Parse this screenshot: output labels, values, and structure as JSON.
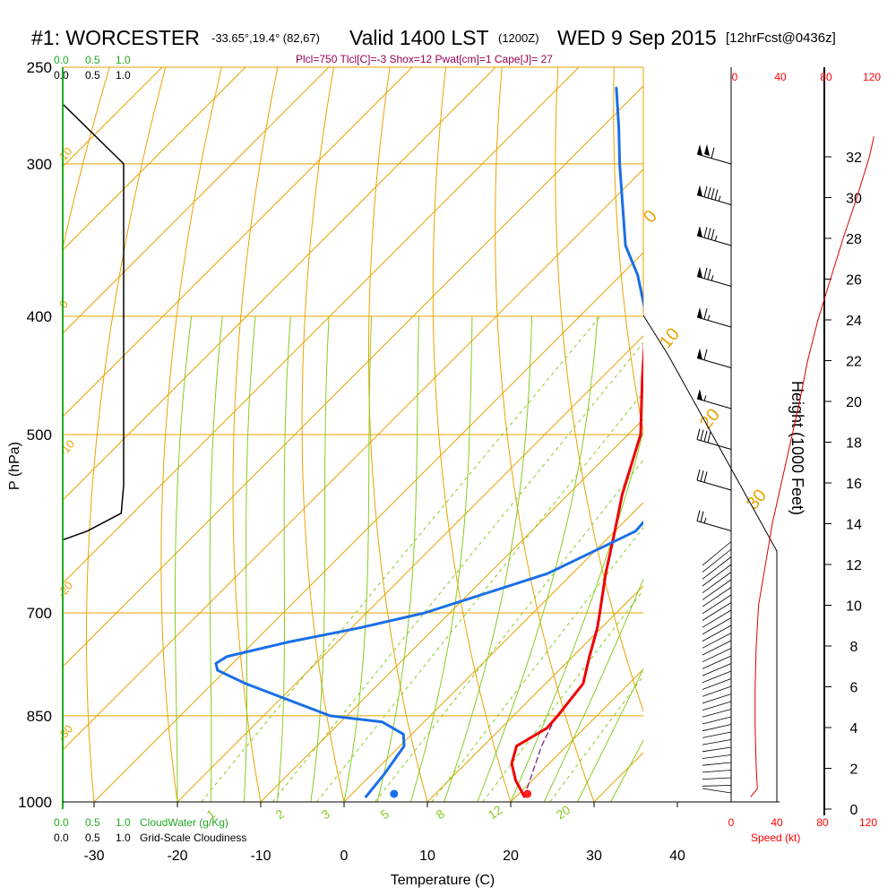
{
  "header": {
    "station": "#1: WORCESTER",
    "coords": "-33.65°,19.4° (82,67)",
    "valid": "Valid 1400 LST",
    "zulu": "(1200Z)",
    "date": "WED 9 Sep 2015",
    "forecast": "[12hrFcst@0436z]",
    "stats": "Plcl=750 Tlcl[C]=-3 Shox=12 Pwat[cm]=1 Cape[J]= 27"
  },
  "colors": {
    "isotherm": "#e9a300",
    "mixing_ratio": "#88cc22",
    "temperature": "#ee0000",
    "dewpoint": "#1a6fe6",
    "wind_speed": "#dd0000",
    "cloud": "#22aa22"
  },
  "chart_data": {
    "type": "line",
    "title": "#1: WORCESTER",
    "xlabel": "Temperature (C)",
    "ylabel": "P (hPa)",
    "y2label": "Height (1000 Feet)",
    "x_ticks": [
      -30,
      -20,
      -10,
      0,
      10,
      20,
      30,
      40
    ],
    "p_ticks": [
      250,
      300,
      400,
      500,
      700,
      850,
      1000
    ],
    "p_scale": "log",
    "height_ticks": [
      0,
      2,
      4,
      6,
      8,
      10,
      12,
      14,
      16,
      18,
      20,
      22,
      24,
      26,
      28,
      30,
      32
    ],
    "isotherm_labels": [
      "10",
      "0",
      "-10",
      "-20",
      "-30",
      "0",
      "10",
      "20",
      "30"
    ],
    "mixing_ratio_labels": [
      "1",
      "2",
      "3",
      "5",
      "8",
      "12",
      "20"
    ],
    "series": [
      {
        "name": "Temperature",
        "p": [
          990,
          960,
          930,
          900,
          870,
          850,
          800,
          760,
          720,
          700,
          650,
          600,
          560,
          500,
          450,
          400,
          350,
          300,
          270,
          260
        ],
        "t": [
          21.0,
          18.0,
          15.5,
          14.0,
          15.5,
          15.3,
          14.5,
          12.0,
          9.5,
          8.0,
          4.0,
          0.0,
          -3.5,
          -8.5,
          -15.0,
          -22.0,
          -30.0,
          -40.0,
          -45.5,
          -47.5
        ]
      },
      {
        "name": "Dewpoint",
        "p": [
          990,
          950,
          900,
          880,
          860,
          850,
          800,
          780,
          770,
          760,
          740,
          720,
          700,
          650,
          600,
          560,
          500,
          450,
          400,
          370,
          350,
          300,
          280,
          260
        ],
        "t": [
          2.0,
          1.5,
          0.5,
          -1.0,
          -5.0,
          -12.0,
          -26.0,
          -31.0,
          -32.0,
          -31.5,
          -26.0,
          -19.0,
          -13.0,
          -3.0,
          2.5,
          2.0,
          -5.5,
          -13.0,
          -22.0,
          -28.0,
          -33.0,
          -43.5,
          -48.0,
          -53.0
        ]
      },
      {
        "name": "Parcel",
        "p": [
          990,
          900,
          860
        ],
        "t": [
          21.0,
          17.0,
          15.5
        ]
      }
    ],
    "surface": {
      "temperature": 22,
      "dewpoint": 6
    },
    "cloud_axes": {
      "cloudwater_label": "CloudWater (g/Kg)",
      "cloudiness_label": "Grid-Scale Cloudiness",
      "ticks": [
        "0.0",
        "0.5",
        "1.0"
      ]
    },
    "cloudiness_profile": {
      "p": [
        268,
        300,
        400,
        500,
        550,
        580,
        600,
        610
      ],
      "value": [
        0,
        0.5,
        0.5,
        0.5,
        0.5,
        0.48,
        0.2,
        0
      ]
    },
    "wind_speed": {
      "label": "Speed (kt)",
      "ticks": [
        "0",
        "40",
        "80",
        "120"
      ],
      "heights_kft": [
        0.6,
        1,
        2,
        4,
        6,
        8,
        10,
        12,
        13,
        14,
        16,
        18,
        20,
        22,
        24,
        26,
        28,
        30,
        32,
        33
      ],
      "speed_kt": [
        17,
        23,
        22,
        21,
        21,
        22,
        24,
        30,
        33,
        36,
        44,
        52,
        60,
        67,
        76,
        87,
        98,
        110,
        121,
        125
      ]
    },
    "wind_barbs": {
      "heights_kft": [
        1,
        3,
        5,
        7,
        9,
        11,
        12,
        14,
        16,
        18,
        20,
        22,
        24,
        26,
        28,
        30,
        32
      ],
      "speed_kt": [
        10,
        10,
        10,
        10,
        15,
        15,
        15,
        25,
        30,
        40,
        55,
        60,
        65,
        75,
        85,
        95,
        110
      ]
    }
  }
}
